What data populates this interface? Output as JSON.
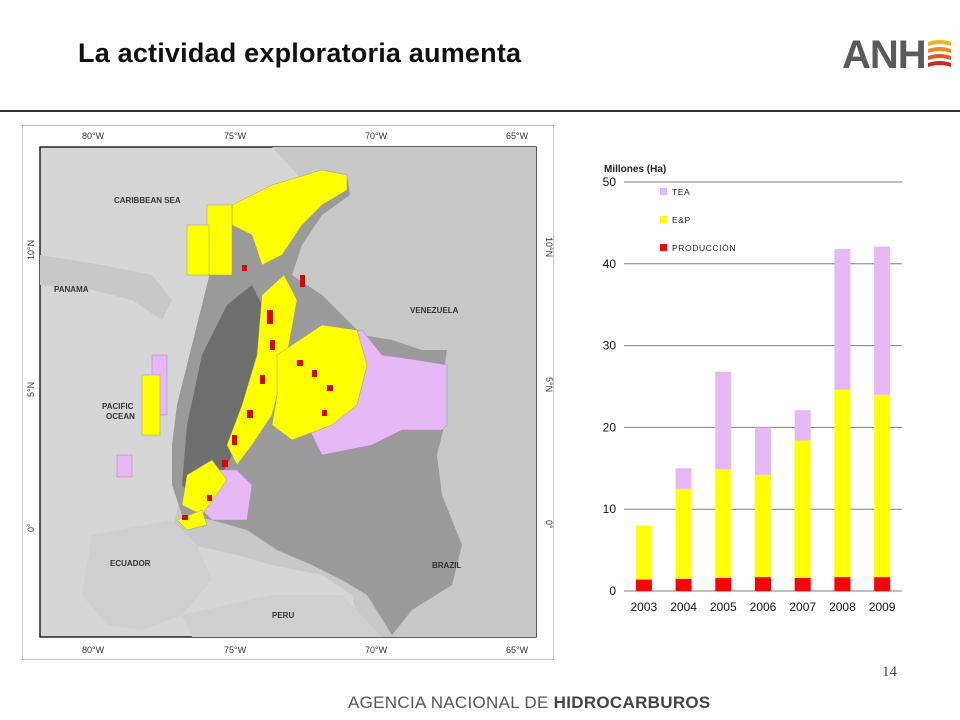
{
  "title": "La actividad exploratoria aumenta",
  "logo_text": "ANH",
  "page_number": "14",
  "footer": {
    "prefix": "AGENCIA NACIONAL DE ",
    "bold": "HIDROCARBUROS"
  },
  "map": {
    "lon_labels": [
      "80°W",
      "75°W",
      "70°W",
      "65°W"
    ],
    "lat_labels": [
      "10°N",
      "5°N",
      "0°"
    ],
    "places": [
      "CARIBBEAN SEA",
      "PANAMA",
      "VENEZUELA",
      "PACIFIC",
      "OCEAN",
      "ECUADOR",
      "PERU",
      "BRAZIL"
    ],
    "colors": {
      "ocean": "#d6d6d6",
      "land": "#bdbdbd",
      "colombia": "#8f8f8f",
      "yellow": "#ffff00",
      "violet": "#e6b8f5",
      "red": "#e00000"
    }
  },
  "chart_data": {
    "type": "bar",
    "stacked": true,
    "ylabel": "Millones (Ha)",
    "ylim": [
      0,
      50
    ],
    "yticks": [
      0,
      10,
      20,
      30,
      40,
      50
    ],
    "categories": [
      "2003",
      "2004",
      "2005",
      "2006",
      "2007",
      "2008",
      "2009"
    ],
    "series": [
      {
        "name": "PRODUCCIÓN",
        "color": "#ff0000",
        "values": [
          1.4,
          1.5,
          1.6,
          1.7,
          1.6,
          1.7,
          1.7
        ]
      },
      {
        "name": "E&P",
        "color": "#ffff00",
        "values": [
          6.6,
          11.0,
          13.3,
          12.5,
          16.8,
          22.9,
          22.3
        ]
      },
      {
        "name": "TEA",
        "color": "#e6b8f5",
        "values": [
          0,
          2.5,
          11.9,
          5.8,
          3.7,
          17.2,
          18.1
        ]
      }
    ],
    "legend_order": [
      "TEA",
      "E&P",
      "PRODUCCIÓN"
    ],
    "legend_position": "top-left",
    "grid": true
  }
}
